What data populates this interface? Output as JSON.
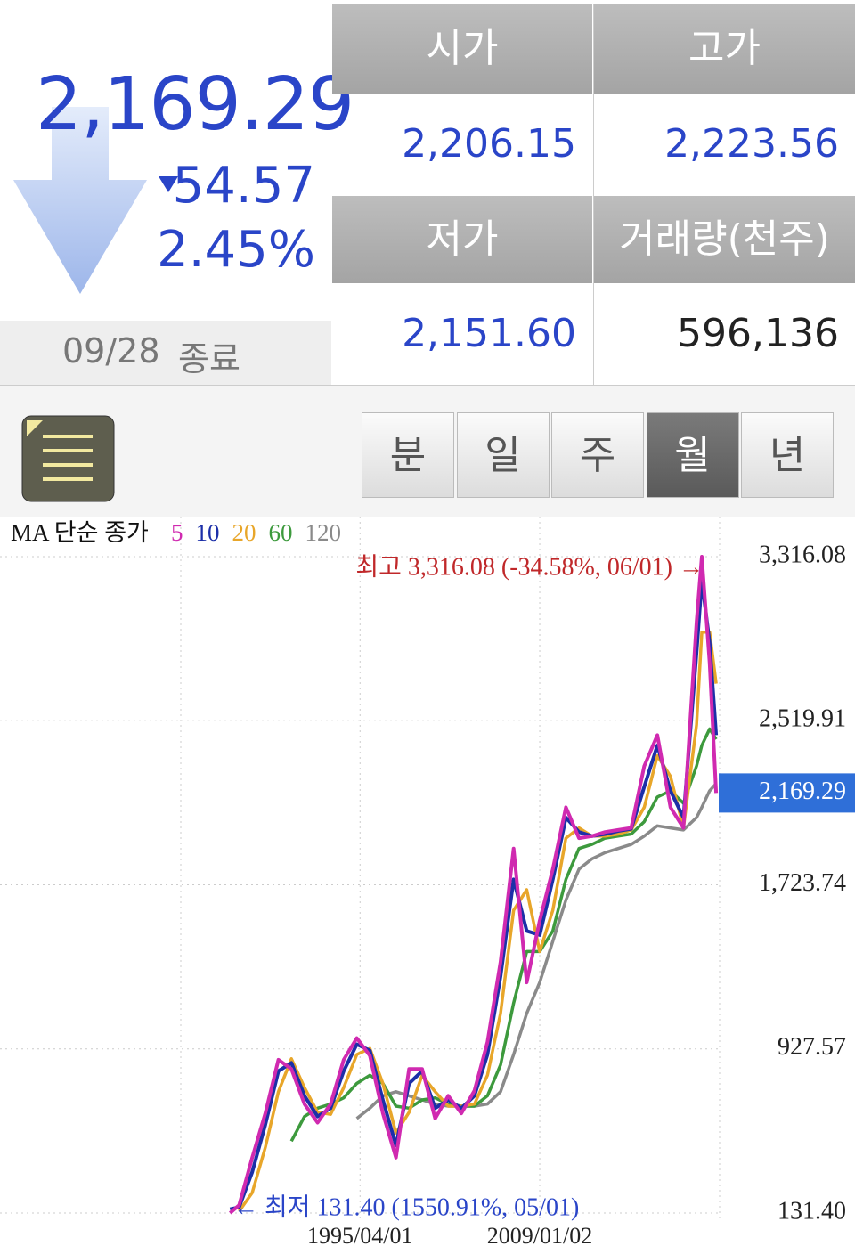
{
  "quote": {
    "price": "2,169.29",
    "change": "54.57",
    "change_pct": "2.45%",
    "date": "09/28",
    "status": "종료"
  },
  "table": {
    "headers": [
      "시가",
      "고가",
      "저가",
      "거래량(천주)"
    ],
    "values": [
      "2,206.15",
      "2,223.56",
      "2,151.60",
      "596,136"
    ]
  },
  "tabs": {
    "labels": [
      "분",
      "일",
      "주",
      "월",
      "년"
    ],
    "selected": 3
  },
  "chart_data": {
    "type": "line",
    "legend_title": "MA 단순 종가",
    "high_label": "최고 3,316.08 (-34.58%, 06/01) →",
    "low_label": "← 최저 131.40 (1550.91%, 05/01)",
    "last": {
      "value": 2169.29,
      "label": "2,169.29"
    },
    "x": [
      1985.3,
      1986,
      1987,
      1988,
      1989,
      1990,
      1991,
      1992,
      1993,
      1994,
      1995,
      1996,
      1997,
      1998,
      1999,
      2000,
      2001,
      2002,
      2003,
      2004,
      2005,
      2006,
      2007,
      2008,
      2009,
      2010,
      2011,
      2012,
      2013,
      2014,
      2015,
      2016,
      2017,
      2018,
      2019,
      2020,
      2021,
      2021.4,
      2022,
      2022.5
    ],
    "xlim": [
      1967.7,
      2022.9
    ],
    "xticks": [
      {
        "value": 1995.25,
        "label": "1995/04/01"
      },
      {
        "value": 2009.0,
        "label": "2009/01/02"
      }
    ],
    "ylim": [
      131.4,
      3316.08
    ],
    "yticks": [
      {
        "value": 131.4,
        "label": "131.40"
      },
      {
        "value": 927.57,
        "label": "927.57"
      },
      {
        "value": 1723.74,
        "label": "1,723.74"
      },
      {
        "value": 2519.91,
        "label": "2,519.91"
      },
      {
        "value": 3316.08,
        "label": "3,316.08"
      }
    ],
    "grid": true,
    "series": [
      {
        "name": "120",
        "color": "#8a8a8a",
        "values": [
          null,
          null,
          null,
          null,
          null,
          null,
          null,
          null,
          null,
          null,
          590,
          640,
          700,
          720,
          700,
          680,
          660,
          650,
          650,
          650,
          660,
          720,
          900,
          1100,
          1250,
          1450,
          1650,
          1800,
          1850,
          1880,
          1900,
          1920,
          1960,
          2010,
          2000,
          1990,
          2050,
          2100,
          2180,
          2215
        ]
      },
      {
        "name": "60",
        "color": "#3d9a3d",
        "values": [
          null,
          null,
          null,
          null,
          null,
          480,
          600,
          640,
          660,
          690,
          760,
          800,
          760,
          650,
          640,
          680,
          690,
          660,
          650,
          650,
          700,
          850,
          1150,
          1400,
          1400,
          1500,
          1750,
          1900,
          1920,
          1950,
          1960,
          1970,
          2030,
          2150,
          2180,
          2120,
          2300,
          2400,
          2480,
          2430
        ]
      },
      {
        "name": "20",
        "color": "#e8a62a",
        "values": [
          null,
          140,
          230,
          450,
          720,
          880,
          740,
          620,
          610,
          740,
          900,
          930,
          760,
          520,
          620,
          800,
          720,
          650,
          650,
          660,
          800,
          1100,
          1600,
          1700,
          1400,
          1600,
          1950,
          2000,
          1960,
          1960,
          1970,
          1990,
          2100,
          2350,
          2250,
          2000,
          2500,
          2950,
          2950,
          2700
        ]
      },
      {
        "name": "10",
        "color": "#1c2fa8",
        "values": [
          150,
          160,
          330,
          560,
          820,
          860,
          700,
          600,
          640,
          820,
          950,
          920,
          680,
          460,
          760,
          820,
          640,
          680,
          640,
          700,
          900,
          1280,
          1750,
          1500,
          1480,
          1750,
          2050,
          1980,
          1960,
          1970,
          1985,
          1995,
          2200,
          2400,
          2180,
          2050,
          2850,
          3200,
          2900,
          2450
        ]
      },
      {
        "name": "5",
        "color": "#d02ab0",
        "values": [
          131.4,
          170,
          400,
          615,
          875,
          830,
          660,
          570,
          660,
          875,
          980,
          895,
          615,
          400,
          830,
          830,
          590,
          700,
          615,
          725,
          960,
          1350,
          1900,
          1250,
          1550,
          1800,
          2100,
          1950,
          1960,
          1980,
          1990,
          2000,
          2300,
          2450,
          2100,
          2000,
          3000,
          3316.08,
          2800,
          2169.29
        ]
      }
    ]
  }
}
